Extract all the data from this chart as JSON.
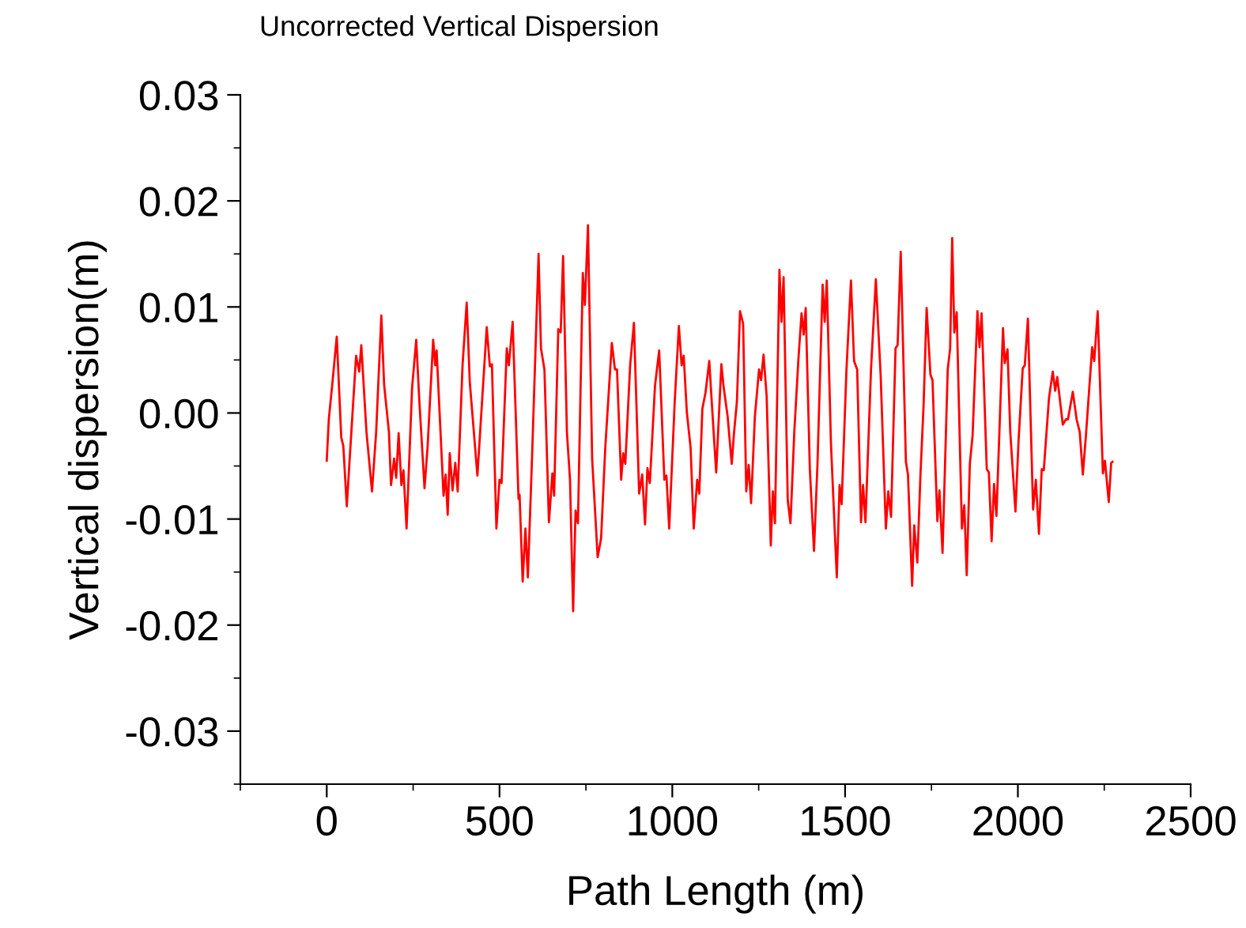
{
  "chart_data": {
    "type": "line",
    "title": "Uncorrected Vertical Dispersion",
    "xlabel": "Path Length (m)",
    "ylabel": "Vertical dispersion(m)",
    "xlim": [
      -250,
      2500
    ],
    "xticks": [
      0,
      500,
      1000,
      1500,
      2000,
      2500
    ],
    "ylim": [
      -0.035,
      0.03
    ],
    "yticks": [
      {
        "value": -0.03,
        "label": "-0.03"
      },
      {
        "value": -0.02,
        "label": "-0.02"
      },
      {
        "value": -0.01,
        "label": "-0.01"
      },
      {
        "value": 0.0,
        "label": "0.00"
      },
      {
        "value": 0.01,
        "label": "0.01"
      },
      {
        "value": 0.02,
        "label": "0.02"
      },
      {
        "value": 0.03,
        "label": "0.03"
      }
    ],
    "grid": false,
    "marker": "none",
    "line_style": "solid",
    "series": [
      {
        "color": "#ff0000",
        "x": [
          0,
          6,
          16,
          29,
          42,
          48,
          58,
          67,
          85,
          94,
          100,
          115,
          131,
          143,
          158,
          166,
          180,
          186,
          195,
          201,
          208,
          216,
          222,
          231,
          247,
          259,
          268,
          283,
          292,
          308,
          314,
          318,
          338,
          344,
          350,
          356,
          364,
          372,
          379,
          393,
          405,
          414,
          436,
          463,
          472,
          478,
          491,
          500,
          506,
          521,
          527,
          538,
          555,
          558,
          567,
          575,
          582,
          594,
          613,
          620,
          630,
          643,
          653,
          658,
          670,
          677,
          684,
          695,
          704,
          713,
          720,
          727,
          741,
          747,
          756,
          768,
          784,
          794,
          806,
          825,
          834,
          840,
          852,
          858,
          864,
          878,
          889,
          904,
          913,
          921,
          928,
          935,
          950,
          962,
          977,
          983,
          991,
          1007,
          1019,
          1027,
          1033,
          1042,
          1053,
          1062,
          1072,
          1078,
          1087,
          1096,
          1107,
          1114,
          1127,
          1142,
          1148,
          1160,
          1172,
          1178,
          1187,
          1196,
          1205,
          1214,
          1221,
          1228,
          1239,
          1251,
          1257,
          1264,
          1273,
          1285,
          1291,
          1297,
          1310,
          1316,
          1322,
          1334,
          1342,
          1353,
          1365,
          1374,
          1380,
          1386,
          1398,
          1410,
          1420,
          1435,
          1441,
          1447,
          1459,
          1476,
          1484,
          1490,
          1504,
          1517,
          1526,
          1535,
          1546,
          1552,
          1559,
          1575,
          1589,
          1603,
          1618,
          1625,
          1633,
          1646,
          1652,
          1661,
          1676,
          1682,
          1694,
          1700,
          1709,
          1718,
          1727,
          1736,
          1747,
          1753,
          1767,
          1773,
          1782,
          1797,
          1804,
          1810,
          1816,
          1823,
          1838,
          1845,
          1852,
          1861,
          1869,
          1883,
          1889,
          1895,
          1910,
          1916,
          1924,
          1931,
          1938,
          1957,
          1962,
          1970,
          1978,
          1993,
          2002,
          2014,
          2020,
          2029,
          2044,
          2052,
          2061,
          2069,
          2075,
          2090,
          2101,
          2108,
          2114,
          2130,
          2139,
          2145,
          2159,
          2170,
          2179,
          2188,
          2197,
          2215,
          2221,
          2231,
          2246,
          2252,
          2263,
          2270,
          2274
        ],
        "values": [
          -0.0045,
          -0.0006,
          0.0027,
          0.0072,
          -0.0023,
          -0.0031,
          -0.0088,
          -0.004,
          0.0054,
          0.0039,
          0.0064,
          -0.0018,
          -0.0074,
          -0.0018,
          0.0092,
          0.0027,
          -0.0018,
          -0.0068,
          -0.0043,
          -0.0061,
          -0.0019,
          -0.0068,
          -0.0054,
          -0.0109,
          0.0024,
          0.0069,
          0.0011,
          -0.0071,
          -0.0031,
          0.0069,
          0.0045,
          0.0059,
          -0.0078,
          -0.0058,
          -0.0096,
          -0.0038,
          -0.0073,
          -0.0047,
          -0.0074,
          0.0045,
          0.0104,
          0.0029,
          -0.0059,
          0.0081,
          0.0044,
          0.0046,
          -0.0109,
          -0.0063,
          -0.0066,
          0.0061,
          0.0045,
          0.0086,
          -0.0081,
          -0.0077,
          -0.0159,
          -0.0109,
          -0.0155,
          -0.0043,
          0.015,
          0.0061,
          0.0041,
          -0.0103,
          -0.0057,
          -0.0078,
          0.0079,
          0.0076,
          0.0148,
          -0.0018,
          -0.0063,
          -0.0187,
          -0.0092,
          -0.0104,
          0.0132,
          0.0102,
          0.0177,
          -0.0043,
          -0.0136,
          -0.0118,
          -0.0033,
          0.0066,
          0.0041,
          0.0041,
          -0.0063,
          -0.0038,
          -0.0048,
          0.0045,
          0.0085,
          -0.0076,
          -0.0058,
          -0.0105,
          -0.0052,
          -0.0066,
          0.0026,
          0.0059,
          -0.0063,
          -0.0059,
          -0.0109,
          0.0011,
          0.0082,
          0.0045,
          0.0054,
          0.0001,
          -0.0033,
          -0.0109,
          -0.0063,
          -0.0076,
          0.0004,
          0.0019,
          0.0049,
          0.0011,
          -0.0056,
          0.0046,
          0.0026,
          -0.0003,
          -0.0048,
          -0.0021,
          0.0011,
          0.0096,
          0.0084,
          -0.0074,
          -0.0049,
          -0.0085,
          -0.0003,
          0.0041,
          0.0031,
          0.0055,
          0.0016,
          -0.0125,
          -0.0074,
          -0.0104,
          0.0135,
          0.0086,
          0.0128,
          -0.0082,
          -0.0104,
          -0.0018,
          0.0051,
          0.0094,
          0.0074,
          0.0099,
          -0.0053,
          -0.013,
          -0.0049,
          0.0121,
          0.0086,
          0.0125,
          -0.0028,
          -0.0155,
          -0.0068,
          -0.0086,
          0.0041,
          0.0125,
          0.0049,
          0.0041,
          -0.0103,
          -0.0068,
          -0.0103,
          0.0041,
          0.0126,
          0.0035,
          -0.0109,
          -0.0074,
          -0.0098,
          0.0061,
          0.0064,
          0.0152,
          -0.0046,
          -0.0058,
          -0.0163,
          -0.0106,
          -0.0141,
          -0.0059,
          0.0006,
          0.0099,
          0.0036,
          0.0031,
          -0.0102,
          -0.0073,
          -0.0132,
          0.0041,
          0.0061,
          0.0165,
          0.0076,
          0.0095,
          -0.0109,
          -0.0087,
          -0.0153,
          -0.0048,
          -0.0021,
          0.0096,
          0.0062,
          0.0094,
          -0.0053,
          -0.0056,
          -0.0121,
          -0.0067,
          -0.0097,
          0.008,
          0.0047,
          0.006,
          -0.0018,
          -0.0093,
          -0.0026,
          0.0042,
          0.0045,
          0.0089,
          -0.0091,
          -0.0063,
          -0.0114,
          -0.0053,
          -0.0054,
          0.0014,
          0.0039,
          0.0021,
          0.0034,
          -0.0011,
          -0.0006,
          -0.0006,
          0.002,
          -0.0006,
          -0.0018,
          -0.0058,
          -0.0021,
          0.0062,
          0.0049,
          0.0096,
          -0.0057,
          -0.0045,
          -0.0084,
          -0.0047,
          -0.0046
        ]
      }
    ]
  }
}
